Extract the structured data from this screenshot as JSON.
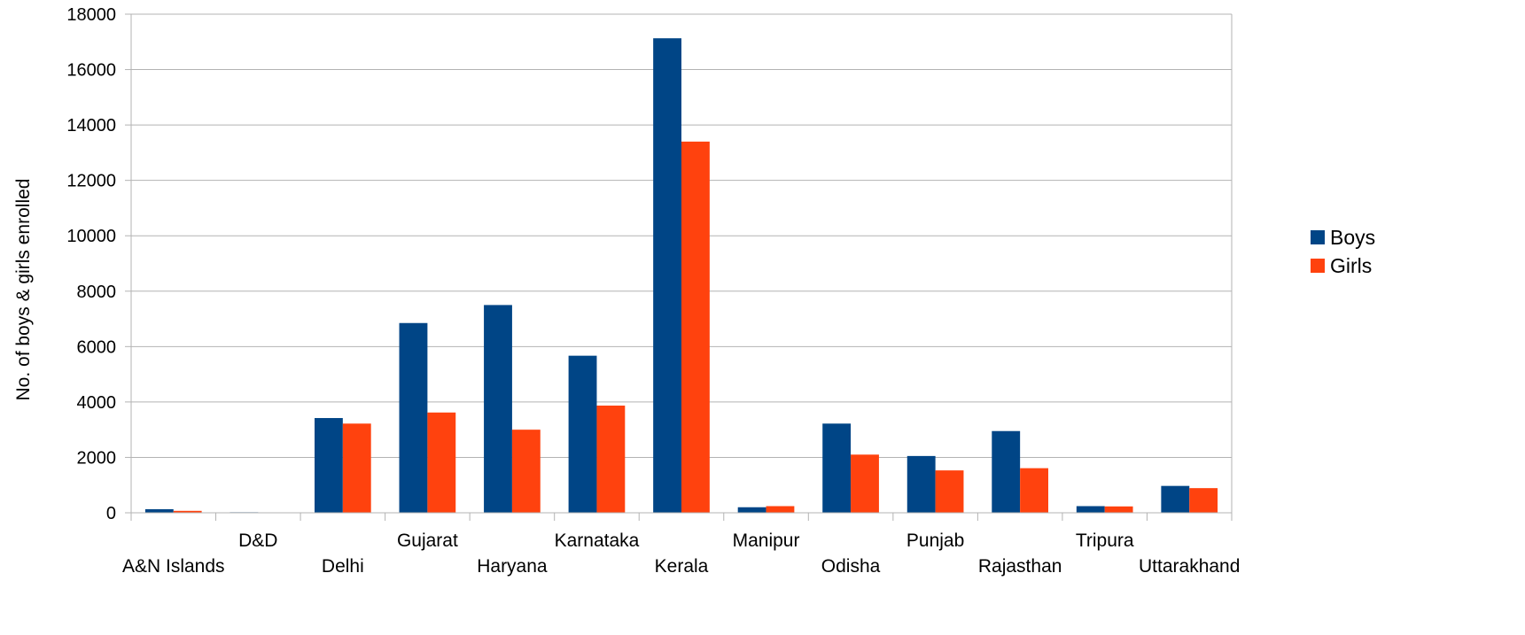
{
  "chart_data": {
    "type": "bar",
    "categories": [
      "A&N Islands",
      "D&D",
      "Delhi",
      "Gujarat",
      "Haryana",
      "Karnataka",
      "Kerala",
      "Manipur",
      "Odisha",
      "Punjab",
      "Rajasthan",
      "Tripura",
      "Uttarakhand"
    ],
    "series": [
      {
        "name": "Boys",
        "color": "#004586",
        "values": [
          130,
          20,
          3420,
          6850,
          7500,
          5670,
          17130,
          200,
          3220,
          2050,
          2950,
          240,
          970
        ]
      },
      {
        "name": "Girls",
        "color": "#ff420e",
        "values": [
          70,
          10,
          3220,
          3620,
          3000,
          3870,
          13400,
          240,
          2100,
          1530,
          1610,
          230,
          890
        ]
      }
    ],
    "title": "",
    "xlabel": "",
    "ylabel": "No. of boys & girls enrolled",
    "ylim": [
      0,
      18000
    ],
    "yticks": [
      "0",
      "2000",
      "4000",
      "6000",
      "8000",
      "10000",
      "12000",
      "14000",
      "16000",
      "18000"
    ],
    "grid": true,
    "legend_position": "right"
  }
}
